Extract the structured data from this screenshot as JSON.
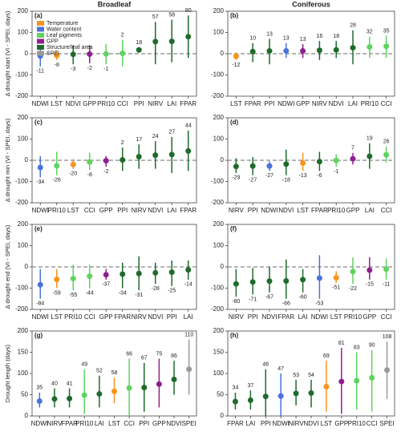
{
  "column_titles": [
    "Broadleaf",
    "Coniferous"
  ],
  "legend": {
    "names": [
      "Temperature",
      "Water content",
      "Leaf pigments",
      "GPP",
      "Structure/leaf area",
      "SPEI"
    ],
    "colors": [
      "#f7941d",
      "#4a72d9",
      "#5fd35f",
      "#8e1f8e",
      "#1f6b2c",
      "#9a9a9a"
    ]
  },
  "chart_data": [
    {
      "type": "errorbar",
      "label": "(a)",
      "ylabel": "Δ drought start (VI - SPEI, days)",
      "categories": [
        "NDWI",
        "LST",
        "NDVI",
        "GPP",
        "PRI10",
        "CCI",
        "PPI",
        "NIRV",
        "LAI",
        "FPAR"
      ],
      "values": [
        -11,
        -8,
        -3,
        -2,
        -1,
        2,
        18,
        57,
        58,
        80
      ],
      "lower": [
        -60,
        -30,
        -50,
        -45,
        -50,
        -60,
        5,
        -50,
        -40,
        -20
      ],
      "upper": [
        30,
        15,
        40,
        40,
        45,
        65,
        30,
        150,
        160,
        180
      ],
      "colors": [
        "#4a72d9",
        "#f7941d",
        "#1f6b2c",
        "#8e1f8e",
        "#5fd35f",
        "#5fd35f",
        "#1f6b2c",
        "#1f6b2c",
        "#1f6b2c",
        "#1f6b2c"
      ],
      "ylim": [
        -200,
        200
      ],
      "yticks": [
        -200,
        -100,
        0,
        100,
        200
      ],
      "zero_line": true
    },
    {
      "type": "errorbar",
      "label": "(b)",
      "categories": [
        "LST",
        "FPAR",
        "PPI",
        "NDWI",
        "GPP",
        "NIRV",
        "NDVI",
        "LAI",
        "PRI10",
        "CCI"
      ],
      "values": [
        -12,
        10,
        13,
        13,
        13,
        16,
        18,
        28,
        32,
        35
      ],
      "lower": [
        -30,
        -40,
        -50,
        -20,
        -20,
        -30,
        -20,
        -50,
        -20,
        -20
      ],
      "upper": [
        5,
        50,
        70,
        50,
        45,
        60,
        60,
        110,
        80,
        85
      ],
      "colors": [
        "#f7941d",
        "#1f6b2c",
        "#1f6b2c",
        "#4a72d9",
        "#8e1f8e",
        "#1f6b2c",
        "#1f6b2c",
        "#1f6b2c",
        "#5fd35f",
        "#5fd35f"
      ],
      "ylim": [
        -200,
        200
      ],
      "yticks": [
        -200,
        -100,
        0,
        100,
        200
      ],
      "zero_line": true
    },
    {
      "type": "errorbar",
      "label": "(c)",
      "ylabel": "Δ drought min (VI - SPEI, days)",
      "categories": [
        "NDWI",
        "PRI10",
        "LST",
        "CCI",
        "GPP",
        "PPI",
        "NIRV",
        "NDVI",
        "LAI",
        "FPAR"
      ],
      "values": [
        -34,
        -26,
        -20,
        -8,
        -2,
        2,
        17,
        24,
        27,
        44
      ],
      "lower": [
        -80,
        -70,
        -40,
        -45,
        -30,
        -50,
        -40,
        -40,
        -60,
        -50
      ],
      "upper": [
        20,
        40,
        5,
        35,
        20,
        60,
        75,
        90,
        110,
        140
      ],
      "colors": [
        "#4a72d9",
        "#5fd35f",
        "#f7941d",
        "#5fd35f",
        "#8e1f8e",
        "#1f6b2c",
        "#1f6b2c",
        "#1f6b2c",
        "#1f6b2c",
        "#1f6b2c"
      ],
      "ylim": [
        -200,
        200
      ],
      "yticks": [
        -200,
        -100,
        0,
        100,
        200
      ],
      "zero_line": true
    },
    {
      "type": "errorbar",
      "label": "(d)",
      "categories": [
        "NIRV",
        "PPI",
        "NDWI",
        "NDVI",
        "LST",
        "FPAR",
        "PRI10",
        "GPP",
        "LAI",
        "CCI"
      ],
      "values": [
        -29,
        -27,
        -27,
        -18,
        -13,
        -6,
        -1,
        7,
        19,
        26
      ],
      "lower": [
        -60,
        -70,
        -50,
        -70,
        -50,
        -50,
        -30,
        -20,
        -40,
        -10
      ],
      "upper": [
        10,
        15,
        -5,
        50,
        35,
        40,
        30,
        35,
        80,
        65
      ],
      "colors": [
        "#1f6b2c",
        "#1f6b2c",
        "#4a72d9",
        "#1f6b2c",
        "#f7941d",
        "#1f6b2c",
        "#5fd35f",
        "#8e1f8e",
        "#1f6b2c",
        "#5fd35f"
      ],
      "ylim": [
        -200,
        200
      ],
      "yticks": [
        -200,
        -100,
        0,
        100,
        200
      ],
      "zero_line": true
    },
    {
      "type": "errorbar",
      "label": "(e)",
      "ylabel": "Δ drought end (VI - SPEI, days)",
      "categories": [
        "NDWI",
        "LST",
        "PRI10",
        "CCI",
        "GPP",
        "FPAR",
        "NIRV",
        "NDVI",
        "PPI",
        "LAI"
      ],
      "values": [
        -84,
        -59,
        -55,
        -44,
        -37,
        -34,
        -31,
        -28,
        -25,
        -14
      ],
      "lower": [
        -150,
        -100,
        -110,
        -100,
        -60,
        -100,
        -110,
        -80,
        -90,
        -60
      ],
      "upper": [
        -10,
        -10,
        10,
        10,
        -10,
        20,
        50,
        20,
        30,
        30
      ],
      "colors": [
        "#4a72d9",
        "#f7941d",
        "#5fd35f",
        "#5fd35f",
        "#8e1f8e",
        "#1f6b2c",
        "#1f6b2c",
        "#1f6b2c",
        "#1f6b2c",
        "#1f6b2c"
      ],
      "ylim": [
        -200,
        200
      ],
      "yticks": [
        -200,
        -100,
        0,
        100,
        200
      ],
      "zero_line": true
    },
    {
      "type": "errorbar",
      "label": "(f)",
      "categories": [
        "NIRV",
        "PPI",
        "NDVI",
        "FPAR",
        "LAI",
        "NDWI",
        "LST",
        "PRI10",
        "GPP",
        "CCI"
      ],
      "values": [
        -80,
        -71,
        -67,
        -66,
        -60,
        -53,
        -51,
        -22,
        -15,
        -11
      ],
      "lower": [
        -140,
        -130,
        -120,
        -150,
        -120,
        -150,
        -75,
        -80,
        -60,
        -60
      ],
      "upper": [
        -10,
        -5,
        0,
        35,
        -10,
        55,
        -20,
        45,
        45,
        40
      ],
      "colors": [
        "#1f6b2c",
        "#1f6b2c",
        "#1f6b2c",
        "#1f6b2c",
        "#1f6b2c",
        "#4a72d9",
        "#f7941d",
        "#5fd35f",
        "#8e1f8e",
        "#5fd35f"
      ],
      "ylim": [
        -200,
        200
      ],
      "yticks": [
        -200,
        -100,
        0,
        100,
        200
      ],
      "zero_line": true
    },
    {
      "type": "errorbar",
      "label": "(g)",
      "ylabel": "Drought length (days)",
      "categories": [
        "NDWI",
        "NIRV",
        "FPAR",
        "PRI10",
        "LAI",
        "LST",
        "CCI",
        "PPI",
        "GPP",
        "NDVI",
        "SPEI"
      ],
      "values": [
        35,
        40,
        41,
        49,
        52,
        58,
        66,
        67,
        75,
        86,
        110
      ],
      "lower": [
        20,
        20,
        20,
        5,
        20,
        30,
        0,
        10,
        20,
        50,
        50
      ],
      "upper": [
        55,
        65,
        65,
        110,
        95,
        90,
        135,
        125,
        135,
        130,
        180
      ],
      "colors": [
        "#4a72d9",
        "#1f6b2c",
        "#1f6b2c",
        "#5fd35f",
        "#1f6b2c",
        "#f7941d",
        "#5fd35f",
        "#1f6b2c",
        "#8e1f8e",
        "#1f6b2c",
        "#9a9a9a"
      ],
      "ylim": [
        0,
        200
      ],
      "yticks": [
        0,
        50,
        100,
        150,
        200
      ],
      "zero_line": false
    },
    {
      "type": "errorbar",
      "label": "(h)",
      "categories": [
        "FPAR",
        "LAI",
        "PPI",
        "NDWI",
        "NIRV",
        "NDVI",
        "LST",
        "GPP",
        "PRI10",
        "CCI",
        "SPEI"
      ],
      "values": [
        34,
        37,
        46,
        47,
        53,
        54,
        69,
        81,
        83,
        90,
        108
      ],
      "lower": [
        15,
        15,
        0,
        0,
        25,
        20,
        10,
        5,
        15,
        10,
        40
      ],
      "upper": [
        55,
        60,
        110,
        100,
        85,
        85,
        130,
        160,
        150,
        155,
        175
      ],
      "colors": [
        "#1f6b2c",
        "#1f6b2c",
        "#1f6b2c",
        "#4a72d9",
        "#1f6b2c",
        "#1f6b2c",
        "#f7941d",
        "#8e1f8e",
        "#5fd35f",
        "#5fd35f",
        "#9a9a9a"
      ],
      "ylim": [
        0,
        200
      ],
      "yticks": [
        0,
        50,
        100,
        150,
        200
      ],
      "zero_line": false
    }
  ]
}
